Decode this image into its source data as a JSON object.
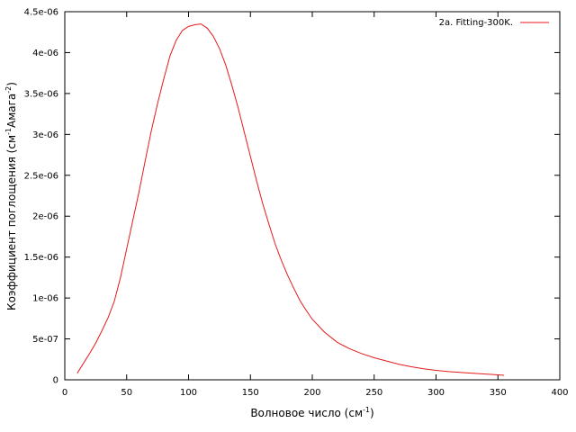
{
  "chart_data": {
    "type": "line",
    "title": "",
    "xlabel": {
      "text": "Волновое число (см",
      "sup": "-1",
      "suffix": ")"
    },
    "ylabel": {
      "text": "Коэффициент поглощения (см",
      "sup1": "-1",
      "mid": "Амага",
      "sup2": "-2",
      "suffix": ")"
    },
    "xlim": [
      0,
      400
    ],
    "ylim": [
      0,
      4.5e-06
    ],
    "xticks": [
      0,
      50,
      100,
      150,
      200,
      250,
      300,
      350,
      400
    ],
    "xtick_labels": [
      "0",
      "50",
      "100",
      "150",
      "200",
      "250",
      "300",
      "350",
      "400"
    ],
    "yticks": [
      0,
      5e-07,
      1e-06,
      1.5e-06,
      2e-06,
      2.5e-06,
      3e-06,
      3.5e-06,
      4e-06,
      4.5e-06
    ],
    "ytick_labels": [
      "0",
      "5e-07",
      "1e-06",
      "1.5e-06",
      "2e-06",
      "2.5e-06",
      "3e-06",
      "3.5e-06",
      "4e-06",
      "4.5e-06"
    ],
    "grid": false,
    "legend_position": "top-right",
    "series": [
      {
        "name": "2a. Fitting-300K.",
        "color": "#e41a1c",
        "x": [
          10,
          15,
          20,
          25,
          30,
          35,
          40,
          45,
          50,
          55,
          60,
          65,
          70,
          75,
          80,
          85,
          90,
          95,
          100,
          105,
          110,
          115,
          120,
          125,
          130,
          135,
          140,
          145,
          150,
          155,
          160,
          165,
          170,
          175,
          180,
          185,
          190,
          195,
          200,
          210,
          220,
          230,
          240,
          250,
          260,
          270,
          280,
          290,
          300,
          310,
          320,
          330,
          340,
          350,
          355
        ],
        "y": [
          8e-08,
          2e-07,
          3.2e-07,
          4.5e-07,
          6e-07,
          7.6e-07,
          9.6e-07,
          1.25e-06,
          1.6e-06,
          1.95e-06,
          2.3e-06,
          2.68e-06,
          3.05e-06,
          3.38e-06,
          3.68e-06,
          3.96e-06,
          4.15e-06,
          4.27e-06,
          4.32e-06,
          4.34e-06,
          4.35e-06,
          4.3e-06,
          4.2e-06,
          4.05e-06,
          3.85e-06,
          3.6e-06,
          3.33e-06,
          3.03e-06,
          2.73e-06,
          2.43e-06,
          2.15e-06,
          1.9e-06,
          1.66e-06,
          1.46e-06,
          1.28e-06,
          1.12e-06,
          9.7e-07,
          8.5e-07,
          7.4e-07,
          5.8e-07,
          4.6e-07,
          3.8e-07,
          3.2e-07,
          2.7e-07,
          2.3e-07,
          1.9e-07,
          1.6e-07,
          1.35e-07,
          1.15e-07,
          1e-07,
          9e-08,
          8e-08,
          7e-08,
          6e-08,
          5.5e-08
        ]
      }
    ]
  }
}
